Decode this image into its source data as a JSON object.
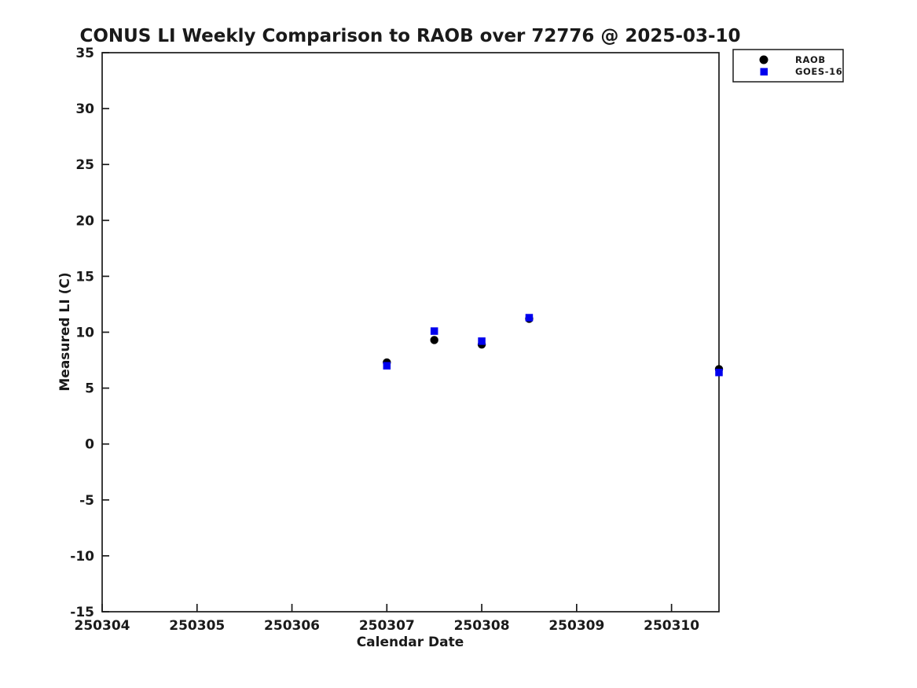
{
  "figure": {
    "background": "#ffffff"
  },
  "chart_data": {
    "type": "scatter",
    "title": "CONUS LI Weekly Comparison to RAOB over 72776 @ 2025-03-10",
    "xlabel": "Calendar Date",
    "ylabel": "Measured LI (C)",
    "xlim": [
      250304,
      250310.5
    ],
    "ylim": [
      -15,
      35
    ],
    "xticks": [
      250304,
      250305,
      250306,
      250307,
      250308,
      250309,
      250310
    ],
    "yticks": [
      -15,
      -10,
      -5,
      0,
      5,
      10,
      15,
      20,
      25,
      30,
      35
    ],
    "grid": false,
    "axis_color": "#1a1a1a",
    "legend_position": "outside-top-right",
    "x": [
      250307,
      250307.5,
      250308,
      250308.5,
      250310.5
    ],
    "series": [
      {
        "name": "RAOB",
        "marker": "circle",
        "color": "#000000",
        "values": [
          7.3,
          9.3,
          8.9,
          11.2,
          6.7
        ]
      },
      {
        "name": "GOES-16",
        "marker": "square",
        "color": "#0000ee",
        "values": [
          7.0,
          10.1,
          9.2,
          11.3,
          6.4
        ]
      }
    ]
  }
}
